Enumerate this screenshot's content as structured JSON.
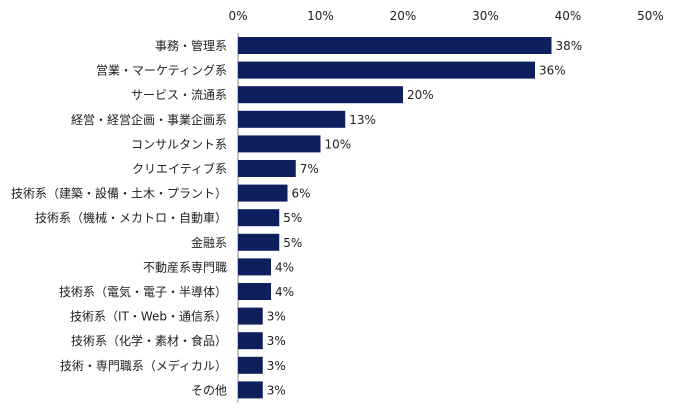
{
  "chart_data": {
    "type": "bar",
    "orientation": "horizontal",
    "title": "",
    "xlabel": "",
    "ylabel": "",
    "xlim": [
      0,
      50
    ],
    "x_ticks": [
      "0%",
      "10%",
      "20%",
      "30%",
      "40%",
      "50%"
    ],
    "tick_values": [
      0,
      10,
      20,
      30,
      40,
      50
    ],
    "axis_position": "top",
    "grid": false,
    "bar_color": "#0d1f5c",
    "categories": [
      "事務・管理系",
      "営業・マーケティング系",
      "サービス・流通系",
      "経営・経営企画・事業企画系",
      "コンサルタント系",
      "クリエイティブ系",
      "技術系（建築・設備・土木・プラント）",
      "技術系（機械・メカトロ・自動車）",
      "金融系",
      "不動産系専門職",
      "技術系（電気・電子・半導体）",
      "技術系（IT・Web・通信系）",
      "技術系（化学・素材・食品）",
      "技術・専門職系（メディカル）",
      "その他"
    ],
    "values": [
      38,
      36,
      20,
      13,
      10,
      7,
      6,
      5,
      5,
      4,
      4,
      3,
      3,
      3,
      3
    ],
    "value_labels": [
      "38%",
      "36%",
      "20%",
      "13%",
      "10%",
      "7%",
      "6%",
      "5%",
      "5%",
      "4%",
      "4%",
      "3%",
      "3%",
      "3%",
      "3%"
    ]
  }
}
